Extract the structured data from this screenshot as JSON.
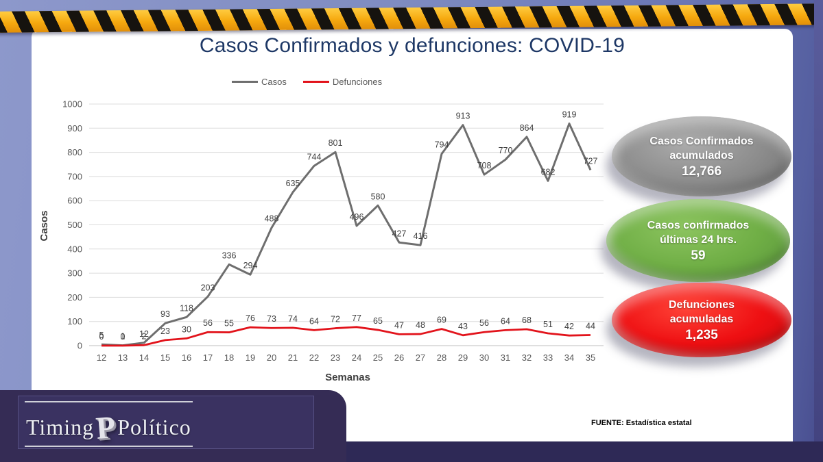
{
  "title": "Casos Confirmados y defunciones: COVID-19",
  "chart_data": {
    "type": "line",
    "x": [
      12,
      13,
      14,
      15,
      16,
      17,
      18,
      19,
      20,
      21,
      22,
      23,
      24,
      25,
      26,
      27,
      28,
      29,
      30,
      31,
      32,
      33,
      34,
      35
    ],
    "series": [
      {
        "name": "Casos",
        "color": "#6e6e6e",
        "values": [
          5,
          1,
          12,
          93,
          118,
          203,
          336,
          294,
          488,
          635,
          744,
          801,
          496,
          580,
          427,
          416,
          794,
          913,
          708,
          770,
          864,
          682,
          919,
          727
        ]
      },
      {
        "name": "Defunciones",
        "color": "#e2131b",
        "values": [
          0,
          0,
          2,
          23,
          30,
          56,
          55,
          76,
          73,
          74,
          64,
          72,
          77,
          65,
          47,
          48,
          69,
          43,
          56,
          64,
          68,
          51,
          42,
          44
        ]
      }
    ],
    "xlabel": "Semanas",
    "ylabel": "Casos",
    "ylim": [
      0,
      1000
    ],
    "ytick_step": 100,
    "grid": true,
    "legend_position": "top"
  },
  "badges": [
    {
      "line1": "Casos Confirmados",
      "line2": "acumulados",
      "value": "12,766",
      "color": "#8c8c8c",
      "color_light": "#ababab",
      "color_dark": "#6c6c6c"
    },
    {
      "line1": "Casos confirmados",
      "line2": "últimas 24 hrs.",
      "value": "59",
      "color": "#6fae45",
      "color_light": "#8cc45f",
      "color_dark": "#55903a"
    },
    {
      "line1": "Defunciones",
      "line2": "acumuladas",
      "value": "1,235",
      "color": "#ee0f12",
      "color_light": "#ff4438",
      "color_dark": "#c60b0f"
    }
  ],
  "source_note": "FUENTE: Estadística estatal",
  "logo": {
    "word1": "Timing",
    "word2": "Político",
    "monogram": "P"
  }
}
